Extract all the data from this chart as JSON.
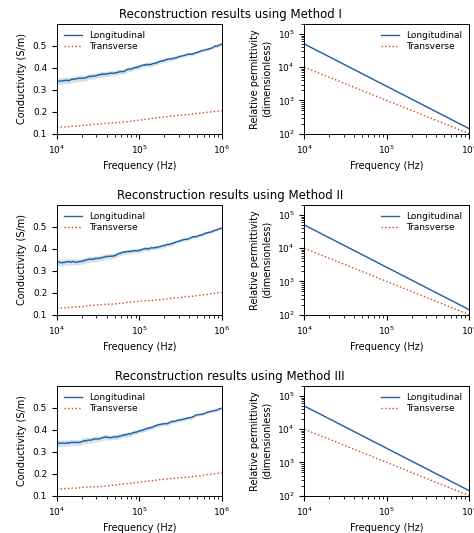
{
  "titles": [
    "Reconstruction results using Method I",
    "Reconstruction results using Method II",
    "Reconstruction results using Method III"
  ],
  "freq_range": [
    10000.0,
    1000000.0
  ],
  "blue_color": "#2060a0",
  "orange_color": "#c84820",
  "background_color": "#ffffff",
  "legend_long": "Longitudinal",
  "legend_trans": "Transverse",
  "ylabel_cond": "Conductivity (S/m)",
  "ylabel_perm": "Relative permittivity\n(dimensionless)",
  "xlabel": "Frequency (Hz)",
  "cond_ylim": [
    0.1,
    0.6
  ],
  "perm_ylim": [
    100.0,
    200000.0
  ],
  "cond_yticks": [
    0.1,
    0.2,
    0.3,
    0.4,
    0.5
  ],
  "title_fontsize": 8.5,
  "label_fontsize": 7,
  "tick_fontsize": 6.5,
  "legend_fontsize": 6.5
}
